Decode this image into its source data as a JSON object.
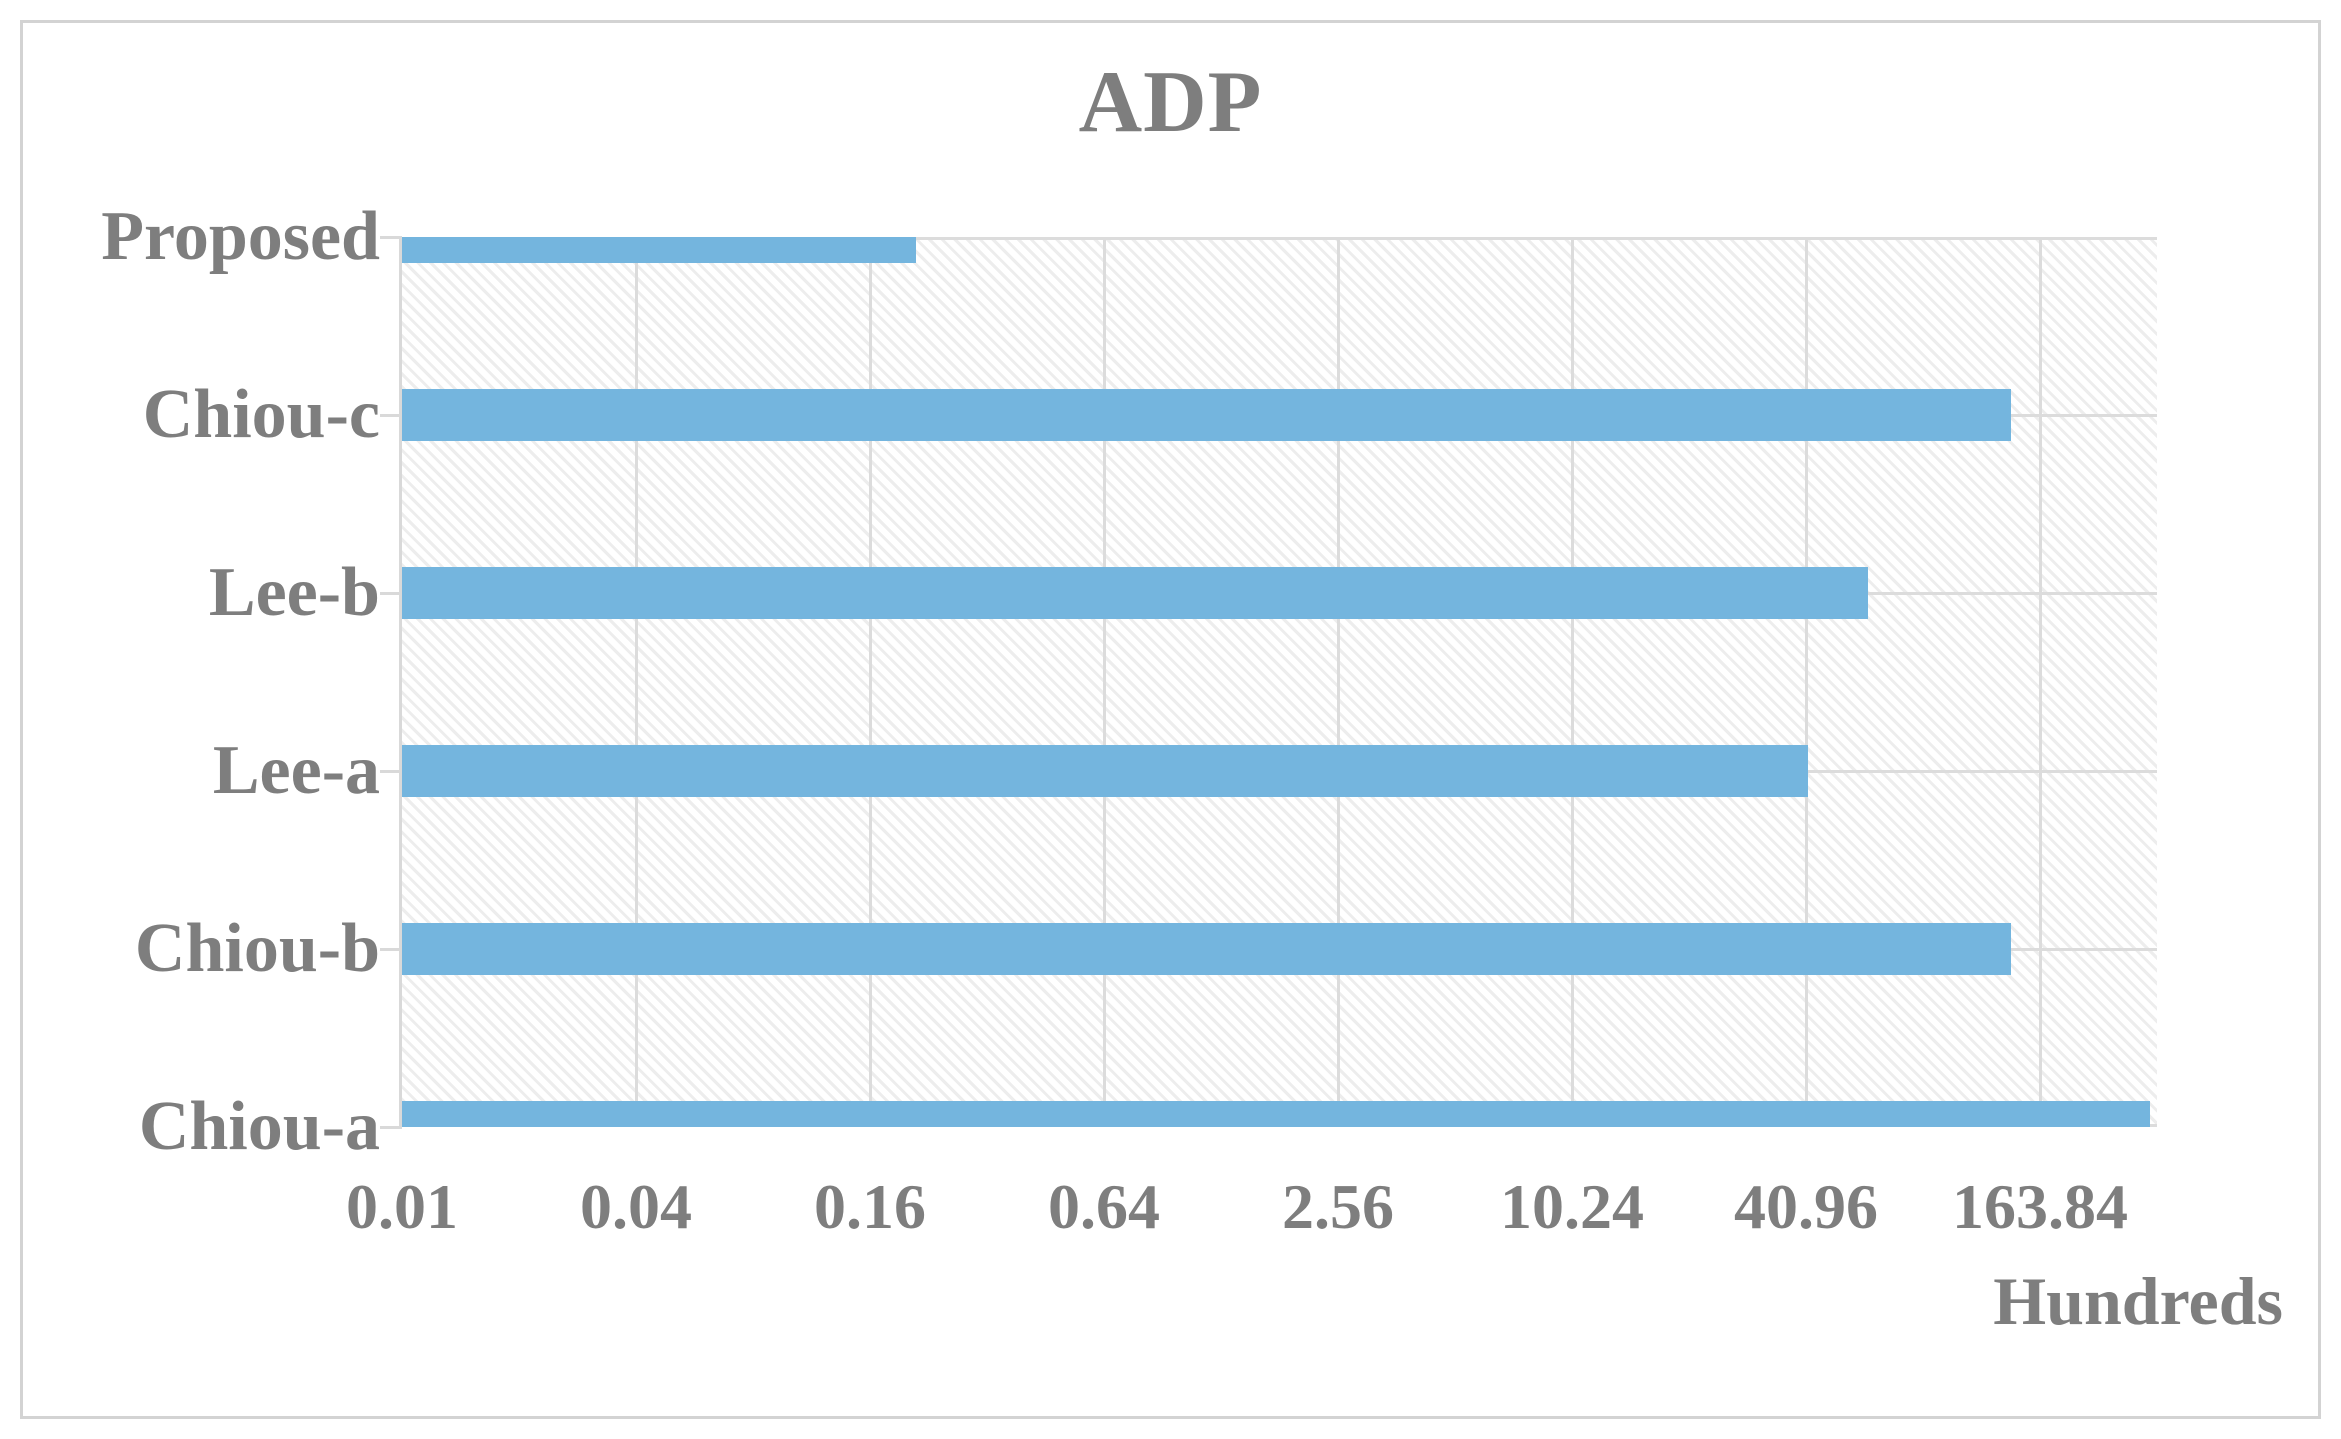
{
  "figure": {
    "title": "ADP"
  },
  "chart_data": {
    "type": "bar",
    "orientation": "horizontal",
    "title": "ADP",
    "categories": [
      "Proposed",
      "Chiou-c",
      "Lee-b",
      "Lee-a",
      "Chiou-b",
      "Chiou-a"
    ],
    "values": [
      0.21,
      138,
      59,
      41.5,
      138,
      315
    ],
    "value_unit_label": "Hundreds",
    "x_axis": {
      "scale": "log",
      "log_base": 4,
      "min": 0.01,
      "max": 327.68,
      "ticks": [
        "0.01",
        "0.04",
        "0.16",
        "0.64",
        "2.56",
        "10.24",
        "40.96",
        "163.84"
      ],
      "tick_values": [
        0.01,
        0.04,
        0.16,
        0.64,
        2.56,
        10.24,
        40.96,
        163.84
      ]
    },
    "grid": true,
    "legend": false,
    "plot_background": "diagonal-hatch",
    "colors": {
      "bar": "#74B5DE",
      "text": "#7E7E7E",
      "gridline": "#DCDCDC",
      "axis_line": "#D9D9D9",
      "hatch": "#EDEDED",
      "frame_border": "#D3D3D3",
      "background": "#FFFFFF"
    }
  }
}
